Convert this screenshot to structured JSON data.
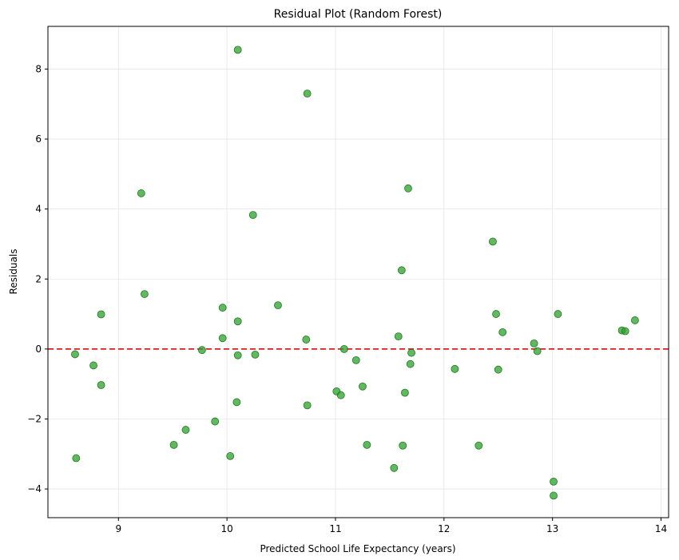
{
  "colors": {
    "point_fill": "#2ca02c",
    "point_stroke": "#1f7a1f",
    "zero_line": "#e31a1c",
    "grid": "#e6e6e6",
    "axes": "#000000",
    "background": "#ffffff"
  },
  "chart_data": {
    "type": "scatter",
    "title": "Residual Plot (Random Forest)",
    "xlabel": "Predicted School Life Expectancy (years)",
    "ylabel": "Residuals",
    "xlim": [
      8.35,
      14.07
    ],
    "ylim": [
      -4.82,
      9.22
    ],
    "xticks": [
      9,
      10,
      11,
      12,
      13,
      14
    ],
    "yticks": [
      -4,
      -2,
      0,
      2,
      4,
      6,
      8
    ],
    "grid": true,
    "reference_line": {
      "y": 0,
      "style": "dashed"
    },
    "series": [
      {
        "name": "residuals",
        "points": [
          {
            "x": 8.6,
            "y": -0.15
          },
          {
            "x": 8.61,
            "y": -3.12
          },
          {
            "x": 8.77,
            "y": -0.47
          },
          {
            "x": 8.84,
            "y": 0.99
          },
          {
            "x": 8.84,
            "y": -1.03
          },
          {
            "x": 9.21,
            "y": 4.45
          },
          {
            "x": 9.24,
            "y": 1.57
          },
          {
            "x": 9.51,
            "y": -2.74
          },
          {
            "x": 9.62,
            "y": -2.31
          },
          {
            "x": 9.77,
            "y": -0.03
          },
          {
            "x": 9.89,
            "y": -2.07
          },
          {
            "x": 9.96,
            "y": 1.18
          },
          {
            "x": 9.96,
            "y": 0.31
          },
          {
            "x": 10.03,
            "y": -3.06
          },
          {
            "x": 10.1,
            "y": 8.55
          },
          {
            "x": 10.1,
            "y": 0.79
          },
          {
            "x": 10.1,
            "y": -0.18
          },
          {
            "x": 10.09,
            "y": -1.52
          },
          {
            "x": 10.24,
            "y": 3.83
          },
          {
            "x": 10.26,
            "y": -0.16
          },
          {
            "x": 10.47,
            "y": 1.25
          },
          {
            "x": 10.73,
            "y": 0.27
          },
          {
            "x": 10.74,
            "y": 7.3
          },
          {
            "x": 10.74,
            "y": -1.61
          },
          {
            "x": 11.01,
            "y": -1.21
          },
          {
            "x": 11.05,
            "y": -1.32
          },
          {
            "x": 11.08,
            "y": 0.0
          },
          {
            "x": 11.19,
            "y": -0.32
          },
          {
            "x": 11.25,
            "y": -1.07
          },
          {
            "x": 11.29,
            "y": -2.74
          },
          {
            "x": 11.54,
            "y": -3.4
          },
          {
            "x": 11.58,
            "y": 0.36
          },
          {
            "x": 11.61,
            "y": 2.25
          },
          {
            "x": 11.62,
            "y": -2.76
          },
          {
            "x": 11.64,
            "y": -1.25
          },
          {
            "x": 11.67,
            "y": 4.59
          },
          {
            "x": 11.69,
            "y": -0.43
          },
          {
            "x": 11.7,
            "y": -0.11
          },
          {
            "x": 12.1,
            "y": -0.57
          },
          {
            "x": 12.32,
            "y": -2.76
          },
          {
            "x": 12.45,
            "y": 3.07
          },
          {
            "x": 12.48,
            "y": 1.0
          },
          {
            "x": 12.5,
            "y": -0.59
          },
          {
            "x": 12.54,
            "y": 0.48
          },
          {
            "x": 12.83,
            "y": 0.16
          },
          {
            "x": 12.86,
            "y": -0.06
          },
          {
            "x": 13.01,
            "y": -3.79
          },
          {
            "x": 13.01,
            "y": -4.19
          },
          {
            "x": 13.05,
            "y": 1.0
          },
          {
            "x": 13.64,
            "y": 0.53
          },
          {
            "x": 13.67,
            "y": 0.51
          },
          {
            "x": 13.76,
            "y": 0.82
          }
        ]
      }
    ]
  }
}
